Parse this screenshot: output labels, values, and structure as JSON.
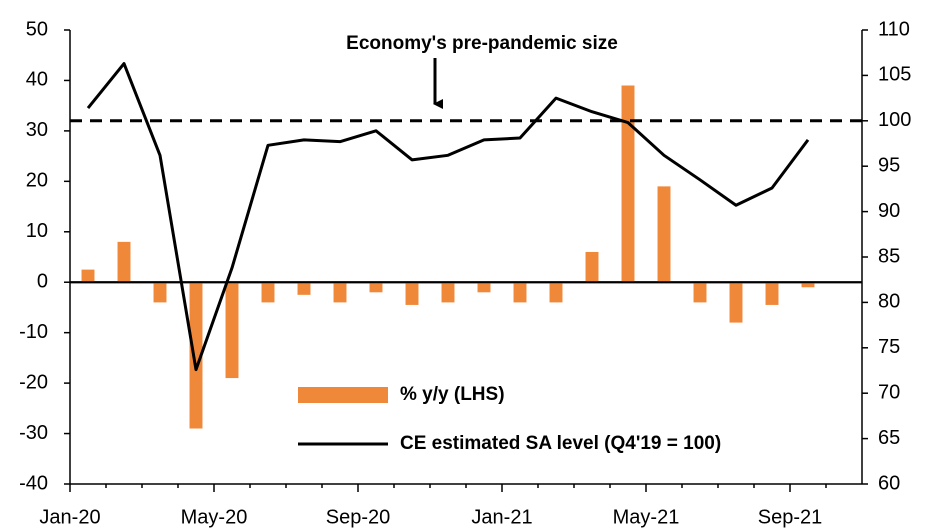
{
  "chart_data": {
    "type": "combo",
    "categories": [
      "Jan-20",
      null,
      null,
      null,
      "May-20",
      null,
      null,
      null,
      "Sep-20",
      null,
      null,
      null,
      "Jan-21",
      null,
      null,
      null,
      "May-21",
      null,
      null,
      null,
      "Sep-21",
      null
    ],
    "series": [
      {
        "name": "% y/y (LHS)",
        "type": "bar",
        "color": "#f0883a",
        "axis": "y",
        "values": [
          2.5,
          8,
          -4,
          -29,
          -19,
          -4,
          -2.5,
          -4,
          -2,
          -4.5,
          -4,
          -2,
          -4,
          -4,
          6,
          39,
          19,
          -4,
          -8,
          -4.5,
          -1,
          null
        ]
      },
      {
        "name": "CE estimated SA level (Q4'19 = 100)",
        "type": "line",
        "color": "#000000",
        "axis": "y2",
        "values": [
          101.4,
          106.3,
          96.2,
          72.6,
          83.8,
          97.3,
          97.9,
          97.7,
          98.9,
          95.7,
          96.2,
          97.9,
          98.1,
          102.5,
          101,
          99.8,
          96.2,
          93.5,
          90.7,
          92.6,
          97.9,
          null
        ]
      }
    ],
    "ylim": [
      -40,
      50
    ],
    "yticks": [
      -40,
      -30,
      -20,
      -10,
      0,
      10,
      20,
      30,
      40,
      50
    ],
    "y2lim": [
      60,
      110
    ],
    "y2ticks": [
      60,
      65,
      70,
      75,
      80,
      85,
      90,
      95,
      100,
      105,
      110
    ],
    "reference_line": {
      "value": 100,
      "axis": "y2",
      "label": "Economy's pre-pandemic size"
    }
  }
}
